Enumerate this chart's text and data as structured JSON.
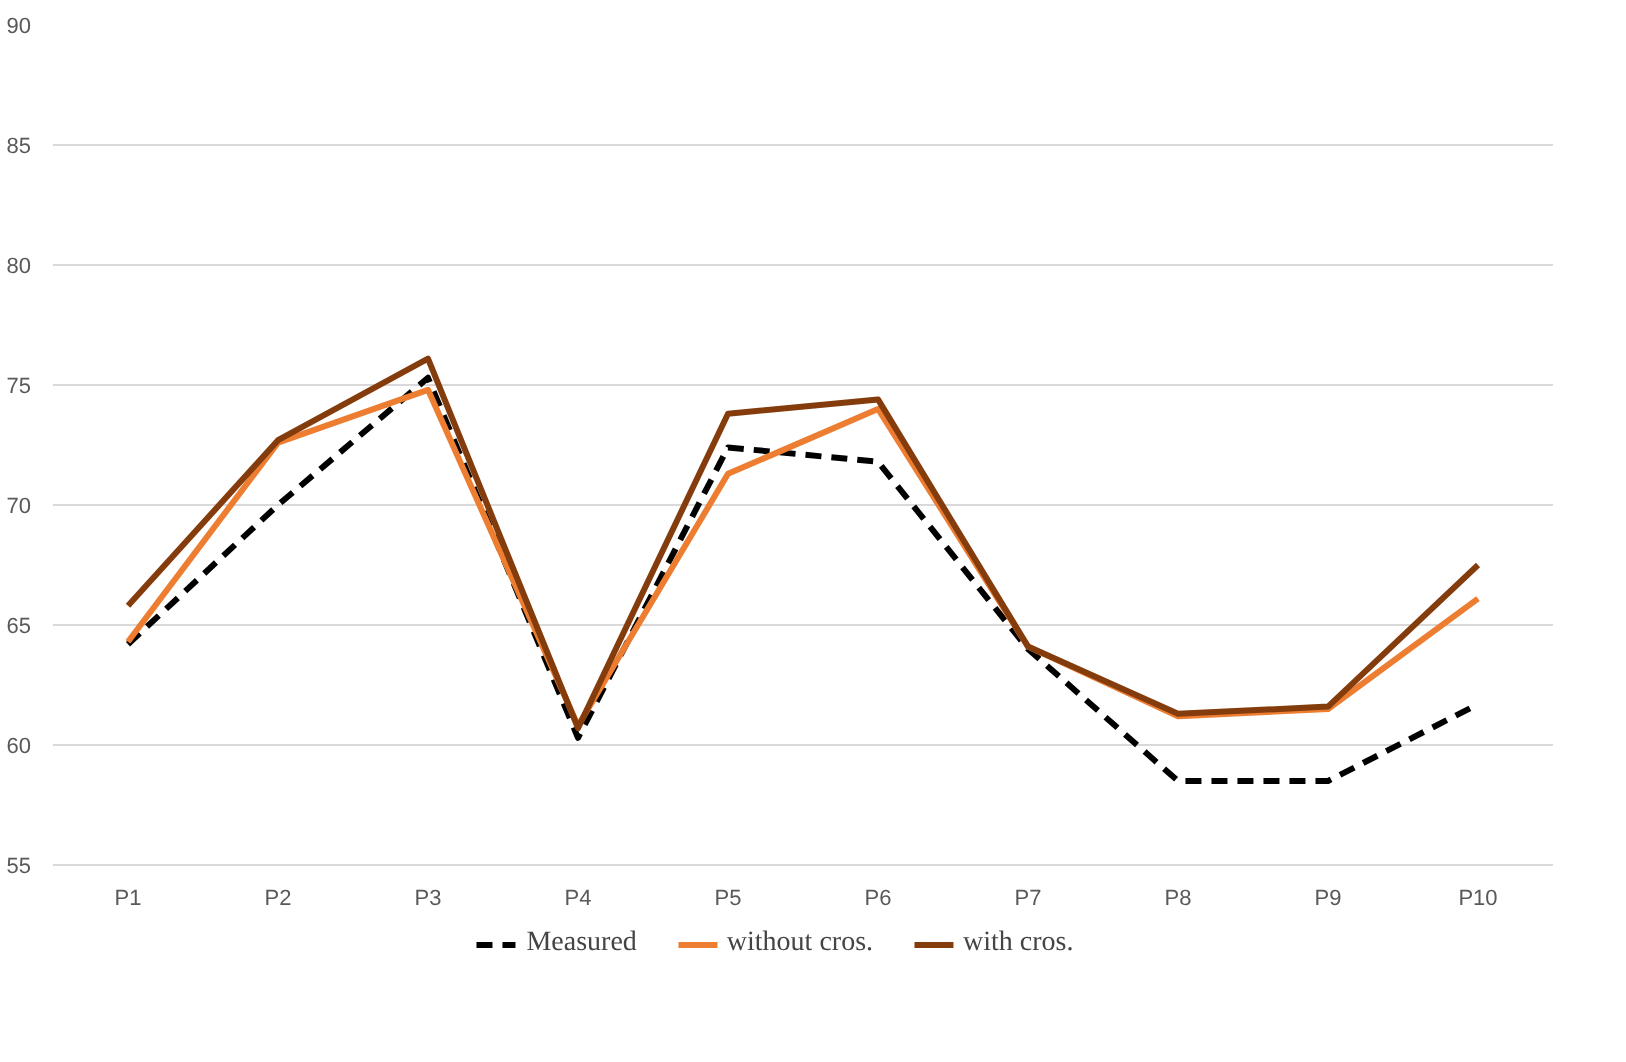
{
  "chart_data": {
    "type": "line",
    "categories": [
      "P1",
      "P2",
      "P3",
      "P4",
      "P5",
      "P6",
      "P7",
      "P8",
      "P9",
      "P10"
    ],
    "series": [
      {
        "name": "Measured",
        "color": "#000000",
        "line_style": "dashed",
        "values": [
          64.2,
          70.0,
          75.3,
          60.3,
          72.4,
          71.8,
          64.0,
          58.5,
          58.5,
          61.7
        ]
      },
      {
        "name": "without cros.",
        "color": "#ed7d31",
        "values": [
          64.3,
          72.6,
          74.8,
          60.8,
          71.3,
          74.0,
          64.1,
          61.2,
          61.5,
          66.1
        ]
      },
      {
        "name": "with cros.",
        "color": "#843c0c",
        "values": [
          65.8,
          72.7,
          76.1,
          60.7,
          73.8,
          74.4,
          64.1,
          61.3,
          61.6,
          67.5
        ]
      }
    ],
    "ylim": [
      55,
      90
    ],
    "yticks": [
      55,
      60,
      65,
      70,
      75,
      80,
      85,
      90
    ],
    "grid": "y",
    "legend": "bottom",
    "marker": "none"
  }
}
